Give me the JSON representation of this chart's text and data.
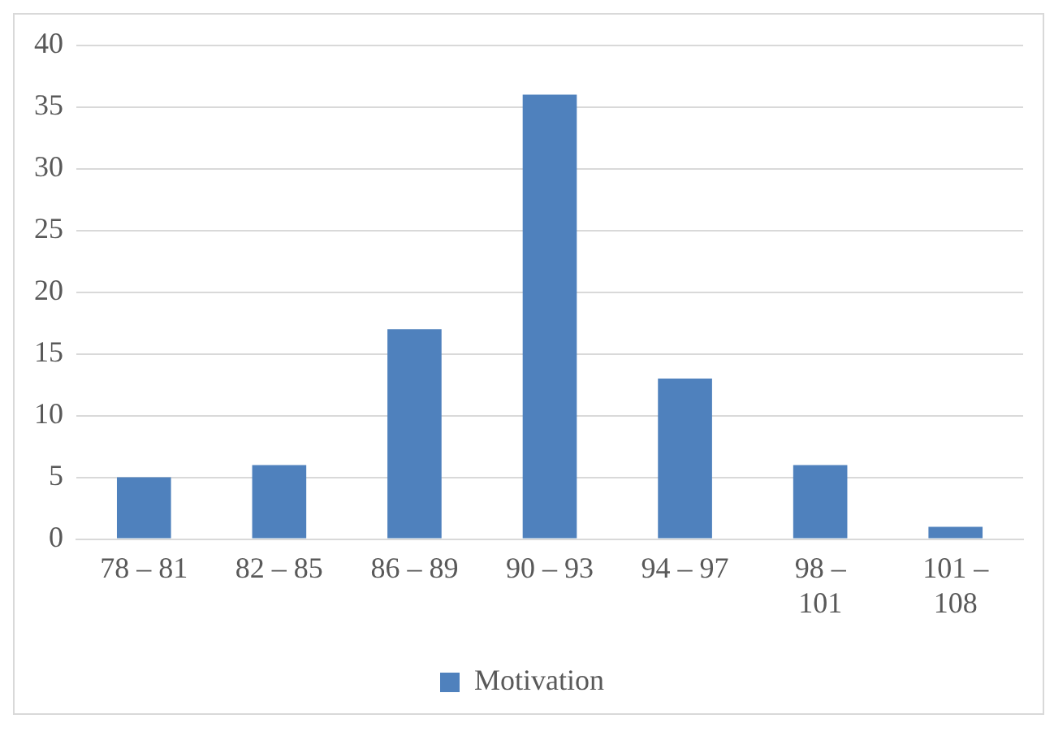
{
  "chart_data": {
    "type": "bar",
    "categories": [
      "78 – 81",
      "82 – 85",
      "86 – 89",
      "90 – 93",
      "94 – 97",
      "98 – 101",
      "101 – 108"
    ],
    "series": [
      {
        "name": "Motivation",
        "color": "#4f81bd",
        "values": [
          5,
          6,
          17,
          36,
          13,
          6,
          1
        ]
      }
    ],
    "ylim": [
      0,
      40
    ],
    "yticks": [
      0,
      5,
      10,
      15,
      20,
      25,
      30,
      35,
      40
    ],
    "grid": "y",
    "legend": "bottom"
  }
}
